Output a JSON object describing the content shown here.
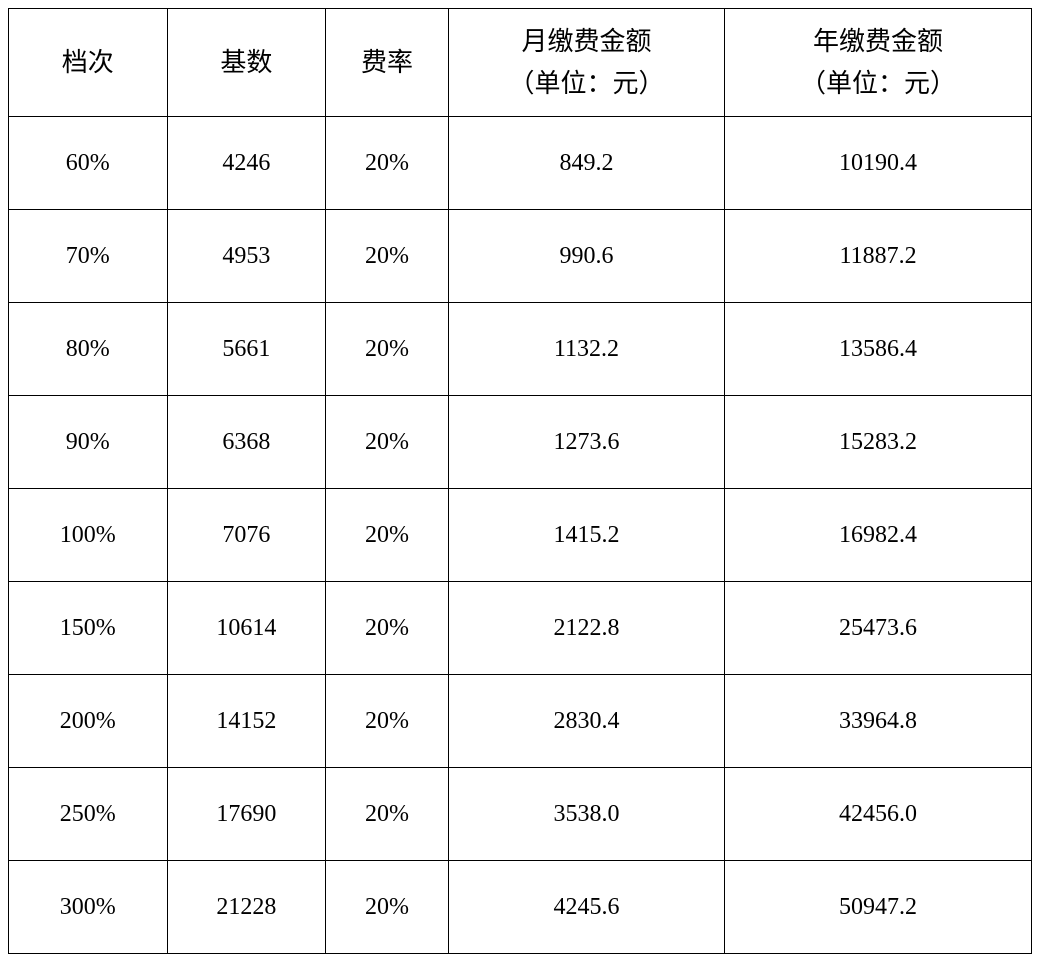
{
  "table": {
    "type": "table",
    "background_color": "#ffffff",
    "border_color": "#000000",
    "text_color": "#000000",
    "header_fontsize": 26,
    "cell_fontsize": 24,
    "columns": [
      {
        "key": "tier",
        "label": "档次",
        "width_pct": 15.5
      },
      {
        "key": "base",
        "label": "基数",
        "width_pct": 15.5
      },
      {
        "key": "rate",
        "label": "费率",
        "width_pct": 12
      },
      {
        "key": "monthly",
        "label_line1": "月缴费金额",
        "label_line2": "（单位：元）",
        "width_pct": 27
      },
      {
        "key": "annual",
        "label_line1": "年缴费金额",
        "label_line2": "（单位：元）",
        "width_pct": 30
      }
    ],
    "rows": [
      {
        "tier": "60%",
        "base": "4246",
        "rate": "20%",
        "monthly": "849.2",
        "annual": "10190.4"
      },
      {
        "tier": "70%",
        "base": "4953",
        "rate": "20%",
        "monthly": "990.6",
        "annual": "11887.2"
      },
      {
        "tier": "80%",
        "base": "5661",
        "rate": "20%",
        "monthly": "1132.2",
        "annual": "13586.4"
      },
      {
        "tier": "90%",
        "base": "6368",
        "rate": "20%",
        "monthly": "1273.6",
        "annual": "15283.2"
      },
      {
        "tier": "100%",
        "base": "7076",
        "rate": "20%",
        "monthly": "1415.2",
        "annual": "16982.4"
      },
      {
        "tier": "150%",
        "base": "10614",
        "rate": "20%",
        "monthly": "2122.8",
        "annual": "25473.6"
      },
      {
        "tier": "200%",
        "base": "14152",
        "rate": "20%",
        "monthly": "2830.4",
        "annual": "33964.8"
      },
      {
        "tier": "250%",
        "base": "17690",
        "rate": "20%",
        "monthly": "3538.0",
        "annual": "42456.0"
      },
      {
        "tier": "300%",
        "base": "21228",
        "rate": "20%",
        "monthly": "4245.6",
        "annual": "50947.2"
      }
    ]
  }
}
